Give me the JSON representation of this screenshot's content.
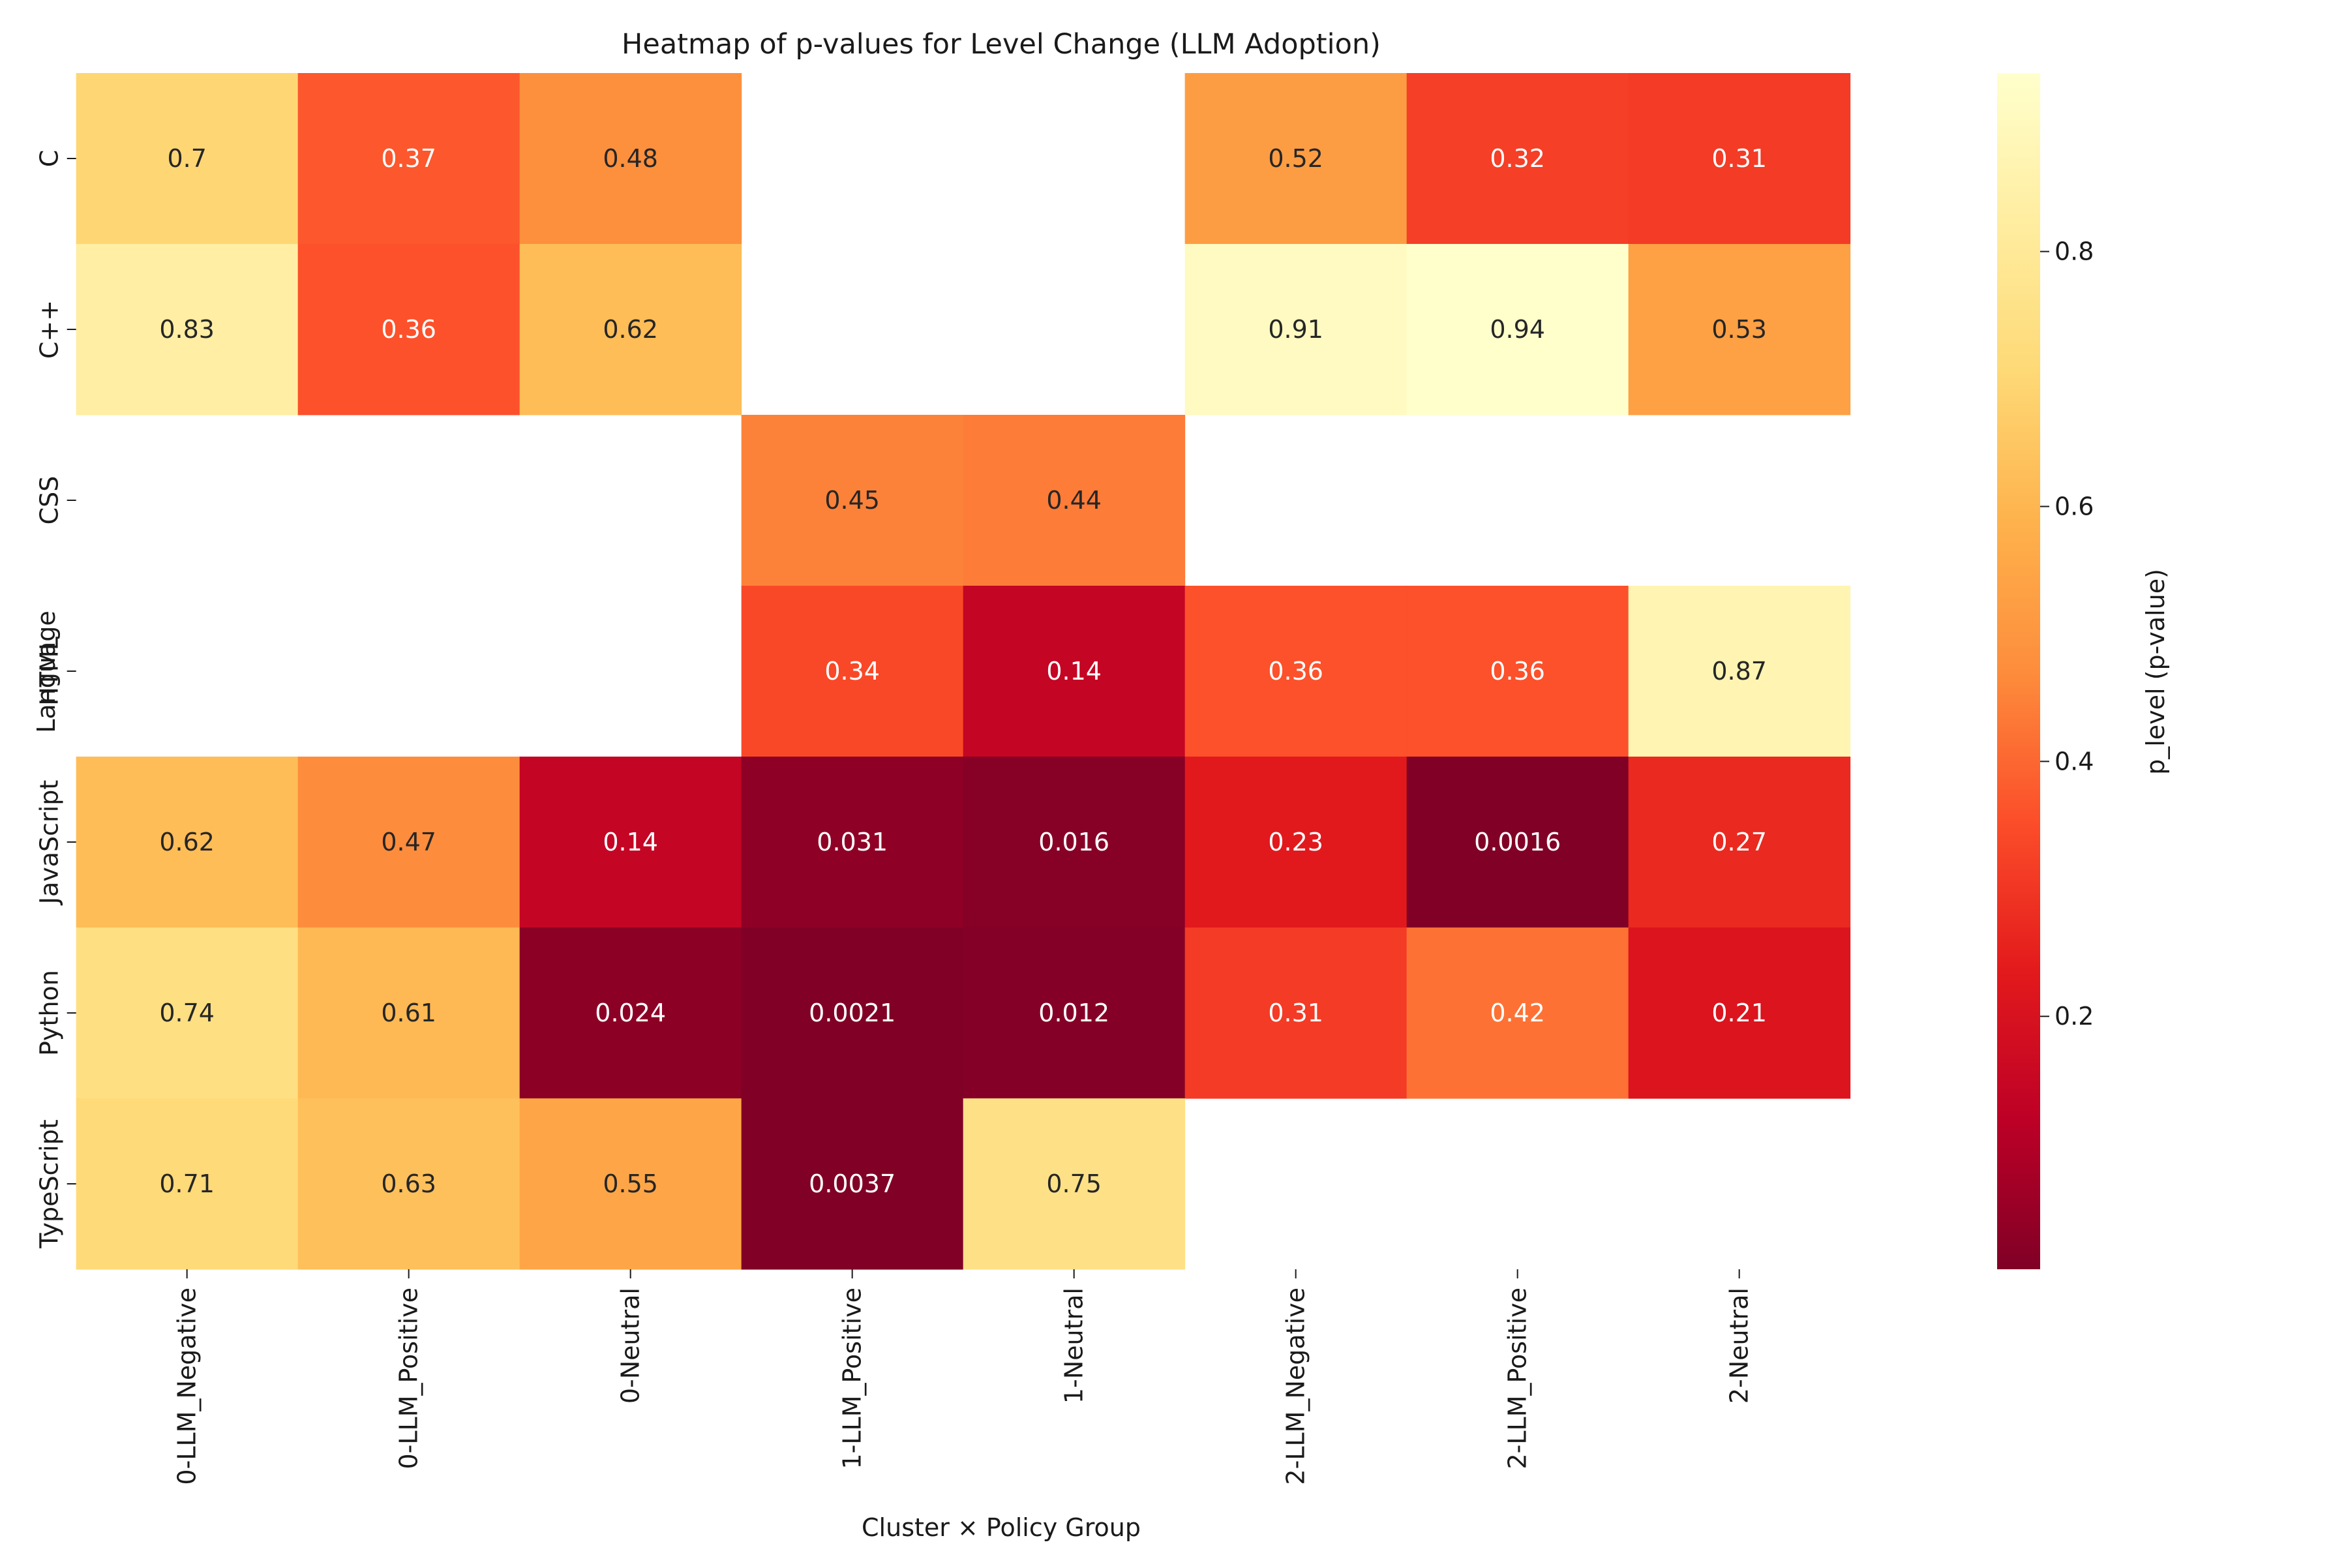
{
  "chart_data": {
    "type": "heatmap",
    "title": "Heatmap of p-values for Level Change (LLM Adoption)",
    "xlabel": "Cluster × Policy Group",
    "ylabel": "Language",
    "x_categories": [
      "0-LLM_Negative",
      "0-LLM_Positive",
      "0-Neutral",
      "1-LLM_Positive",
      "1-Neutral",
      "2-LLM_Negative",
      "2-LLM_Positive",
      "2-Neutral"
    ],
    "y_categories": [
      "C",
      "C++",
      "CSS",
      "HTML",
      "JavaScript",
      "Python",
      "TypeScript"
    ],
    "values": [
      [
        0.7,
        0.37,
        0.48,
        null,
        null,
        0.52,
        0.32,
        0.31
      ],
      [
        0.83,
        0.36,
        0.62,
        null,
        null,
        0.91,
        0.94,
        0.53
      ],
      [
        null,
        null,
        null,
        0.45,
        0.44,
        null,
        null,
        null
      ],
      [
        null,
        null,
        null,
        0.34,
        0.14,
        0.36,
        0.36,
        0.87
      ],
      [
        0.62,
        0.47,
        0.14,
        0.031,
        0.016,
        0.23,
        0.0016,
        0.27
      ],
      [
        0.74,
        0.61,
        0.024,
        0.0021,
        0.012,
        0.31,
        0.42,
        0.21
      ],
      [
        0.71,
        0.63,
        0.55,
        0.0037,
        0.75,
        null,
        null,
        null
      ]
    ],
    "cell_labels": [
      [
        "0.7",
        "0.37",
        "0.48",
        "",
        "",
        "0.52",
        "0.32",
        "0.31"
      ],
      [
        "0.83",
        "0.36",
        "0.62",
        "",
        "",
        "0.91",
        "0.94",
        "0.53"
      ],
      [
        "",
        "",
        "",
        "0.45",
        "0.44",
        "",
        "",
        ""
      ],
      [
        "",
        "",
        "",
        "0.34",
        "0.14",
        "0.36",
        "0.36",
        "0.87"
      ],
      [
        "0.62",
        "0.47",
        "0.14",
        "0.031",
        "0.016",
        "0.23",
        "0.0016",
        "0.27"
      ],
      [
        "0.74",
        "0.61",
        "0.024",
        "0.0021",
        "0.012",
        "0.31",
        "0.42",
        "0.21"
      ],
      [
        "0.71",
        "0.63",
        "0.55",
        "0.0037",
        "0.75",
        "",
        "",
        ""
      ]
    ],
    "colormap": "YlOrRd_r",
    "colormap_stops": [
      "#800026",
      "#bd0026",
      "#e31a1c",
      "#fc4e2a",
      "#fd8d3c",
      "#feb24c",
      "#fed976",
      "#ffeda0",
      "#ffffcc"
    ],
    "color_range": [
      0.0016,
      0.94
    ],
    "colorbar": {
      "label": "p_level (p-value)",
      "ticks": [
        0.2,
        0.4,
        0.6,
        0.8
      ],
      "tick_labels": [
        "0.2",
        "0.4",
        "0.6",
        "0.8"
      ]
    },
    "annotation_text_light": "#ffffff",
    "annotation_text_dark": "#262626",
    "grid": false,
    "legend": "colorbar right"
  }
}
